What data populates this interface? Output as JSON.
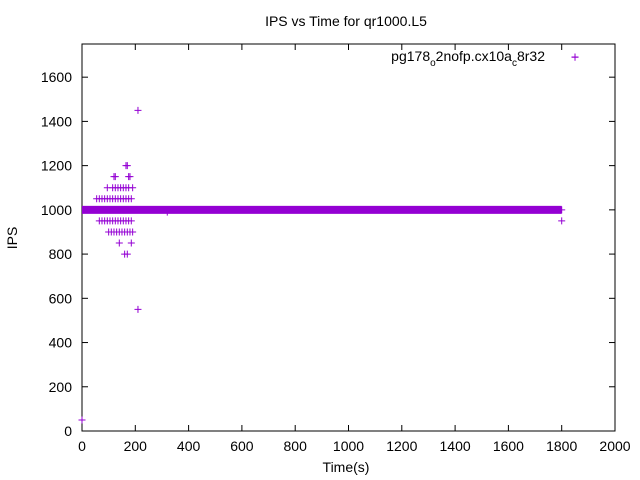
{
  "chart_data": {
    "type": "scatter",
    "title": "IPS vs Time for qr1000.L5",
    "xlabel": "Time(s)",
    "ylabel": "IPS",
    "xlim": [
      0,
      2000
    ],
    "ylim": [
      0,
      1750
    ],
    "x_ticks": [
      0,
      200,
      400,
      600,
      800,
      1000,
      1200,
      1400,
      1600,
      1800,
      2000
    ],
    "y_ticks": [
      0,
      200,
      400,
      600,
      800,
      1000,
      1200,
      1400,
      1600
    ],
    "grid": false,
    "legend_position": "top-right",
    "marker_color": "#9400d3",
    "series": [
      {
        "name": "pg178_o2nofp.cx10a_c8r32",
        "marker": "plus",
        "dense_band": {
          "y": 1000,
          "x_start": 0,
          "x_end": 1800
        },
        "points": [
          [
            0,
            50
          ],
          [
            210,
            1450
          ],
          [
            210,
            550
          ],
          [
            1800,
            950
          ],
          [
            1850,
            1690
          ],
          [
            320,
            990
          ],
          [
            1800,
            1000
          ],
          [
            55,
            1050
          ],
          [
            65,
            1050
          ],
          [
            75,
            1050
          ],
          [
            85,
            1050
          ],
          [
            95,
            1050
          ],
          [
            105,
            1050
          ],
          [
            115,
            1050
          ],
          [
            125,
            1050
          ],
          [
            135,
            1050
          ],
          [
            145,
            1050
          ],
          [
            155,
            1050
          ],
          [
            165,
            1050
          ],
          [
            175,
            1050
          ],
          [
            185,
            1050
          ],
          [
            65,
            950
          ],
          [
            75,
            950
          ],
          [
            85,
            950
          ],
          [
            95,
            950
          ],
          [
            105,
            950
          ],
          [
            115,
            950
          ],
          [
            125,
            950
          ],
          [
            135,
            950
          ],
          [
            145,
            950
          ],
          [
            155,
            950
          ],
          [
            165,
            950
          ],
          [
            175,
            950
          ],
          [
            185,
            950
          ],
          [
            95,
            1100
          ],
          [
            115,
            1100
          ],
          [
            125,
            1100
          ],
          [
            135,
            1100
          ],
          [
            145,
            1100
          ],
          [
            155,
            1100
          ],
          [
            165,
            1100
          ],
          [
            175,
            1100
          ],
          [
            190,
            1100
          ],
          [
            100,
            900
          ],
          [
            110,
            900
          ],
          [
            120,
            900
          ],
          [
            130,
            900
          ],
          [
            140,
            900
          ],
          [
            150,
            900
          ],
          [
            160,
            900
          ],
          [
            170,
            900
          ],
          [
            180,
            900
          ],
          [
            190,
            900
          ],
          [
            120,
            1150
          ],
          [
            125,
            1150
          ],
          [
            175,
            1150
          ],
          [
            180,
            1150
          ],
          [
            165,
            1200
          ],
          [
            170,
            1200
          ],
          [
            140,
            850
          ],
          [
            185,
            850
          ],
          [
            160,
            800
          ],
          [
            170,
            800
          ]
        ]
      }
    ]
  }
}
